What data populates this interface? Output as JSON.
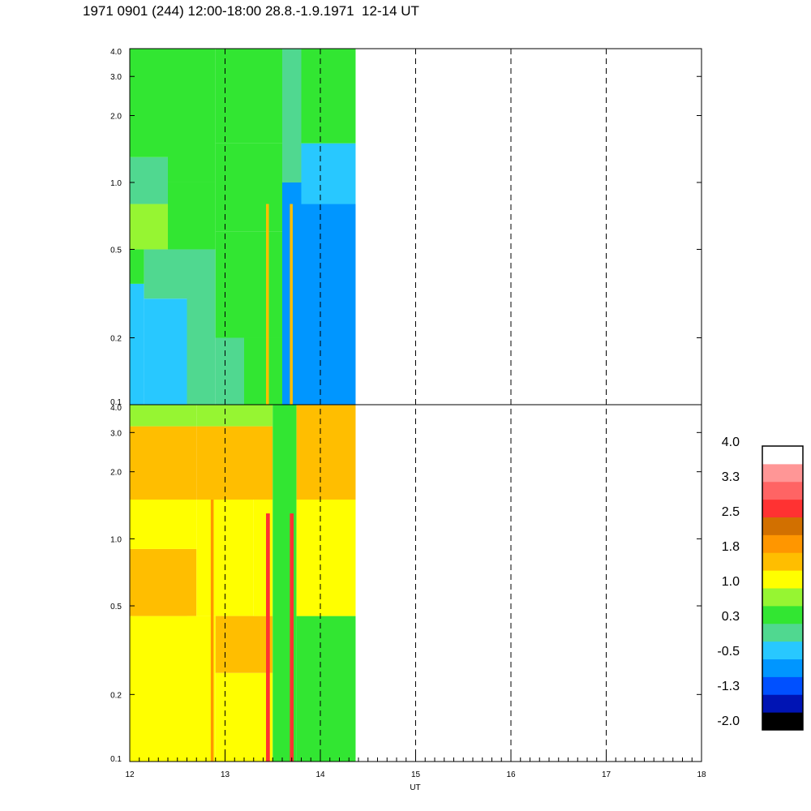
{
  "title": "1971 0901 (244) 12:00-18:00 28.8.-1.9.1971  12-14 UT",
  "chart_data": {
    "type": "heatmap",
    "xlabel": "UT",
    "x_range": [
      12,
      18
    ],
    "x_ticks": [
      "12",
      "13",
      "14",
      "15",
      "16",
      "17",
      "18"
    ],
    "x_dashed_lines": [
      13,
      14,
      15,
      16,
      17
    ],
    "data_x_range": [
      12,
      14.37
    ],
    "y_scale": "log",
    "panels": [
      {
        "name": "upper",
        "ylim": [
          0.1,
          4.0
        ],
        "y_ticks": [
          {
            "v": 0.1,
            "label": "0.1"
          },
          {
            "v": 0.2,
            "label": "0.2"
          },
          {
            "v": 0.5,
            "label": "0.5"
          },
          {
            "v": 1.0,
            "label": "1.0"
          },
          {
            "v": 2.0,
            "label": "2.0"
          },
          {
            "v": 3.0,
            "label": "3.0"
          },
          {
            "v": 4.0,
            "label": "4.0"
          }
        ],
        "cells": [
          {
            "x0": 12.0,
            "x1": 12.15,
            "y0": 0.1,
            "y1": 0.35,
            "level": -0.3
          },
          {
            "x0": 12.0,
            "x1": 12.15,
            "y0": 0.35,
            "y1": 0.5,
            "level": 0.3
          },
          {
            "x0": 12.0,
            "x1": 12.4,
            "y0": 0.5,
            "y1": 0.8,
            "level": 0.7
          },
          {
            "x0": 12.0,
            "x1": 12.4,
            "y0": 0.8,
            "y1": 1.3,
            "level": 0.1
          },
          {
            "x0": 12.0,
            "x1": 12.4,
            "y0": 1.3,
            "y1": 4.0,
            "level": 0.4
          },
          {
            "x0": 12.15,
            "x1": 12.6,
            "y0": 0.1,
            "y1": 0.3,
            "level": -0.3
          },
          {
            "x0": 12.15,
            "x1": 12.6,
            "y0": 0.3,
            "y1": 0.5,
            "level": 0.2
          },
          {
            "x0": 12.4,
            "x1": 12.9,
            "y0": 0.5,
            "y1": 1.0,
            "level": 0.5
          },
          {
            "x0": 12.4,
            "x1": 12.9,
            "y0": 1.0,
            "y1": 4.0,
            "level": 0.3
          },
          {
            "x0": 12.6,
            "x1": 12.9,
            "y0": 0.1,
            "y1": 0.5,
            "level": 0.0
          },
          {
            "x0": 12.9,
            "x1": 13.2,
            "y0": 0.1,
            "y1": 0.2,
            "level": 0.1
          },
          {
            "x0": 12.9,
            "x1": 13.6,
            "y0": 0.2,
            "y1": 0.6,
            "level": 0.5
          },
          {
            "x0": 12.9,
            "x1": 13.6,
            "y0": 0.6,
            "y1": 1.5,
            "level": 0.3
          },
          {
            "x0": 12.9,
            "x1": 13.6,
            "y0": 1.5,
            "y1": 4.0,
            "level": 0.4
          },
          {
            "x0": 13.2,
            "x1": 13.6,
            "y0": 0.1,
            "y1": 0.2,
            "level": 0.3
          },
          {
            "x0": 13.6,
            "x1": 13.8,
            "y0": 0.1,
            "y1": 1.0,
            "level": -0.6
          },
          {
            "x0": 13.6,
            "x1": 13.8,
            "y0": 1.0,
            "y1": 4.0,
            "level": 0.0
          },
          {
            "x0": 13.8,
            "x1": 14.37,
            "y0": 0.1,
            "y1": 0.8,
            "level": -0.7
          },
          {
            "x0": 13.8,
            "x1": 14.37,
            "y0": 0.8,
            "y1": 1.5,
            "level": -0.3
          },
          {
            "x0": 13.8,
            "x1": 14.37,
            "y0": 1.5,
            "y1": 4.0,
            "level": 0.3
          },
          {
            "x0": 13.43,
            "x1": 13.46,
            "y0": 0.1,
            "y1": 0.8,
            "level": 1.7
          },
          {
            "x0": 13.68,
            "x1": 13.71,
            "y0": 0.1,
            "y1": 0.8,
            "level": 1.4
          }
        ]
      },
      {
        "name": "lower",
        "ylim": [
          0.1,
          4.0
        ],
        "y_ticks": [
          {
            "v": 0.1,
            "label": "0.1"
          },
          {
            "v": 0.2,
            "label": "0.2"
          },
          {
            "v": 0.5,
            "label": "0.5"
          },
          {
            "v": 1.0,
            "label": "1.0"
          },
          {
            "v": 2.0,
            "label": "2.0"
          },
          {
            "v": 3.0,
            "label": "3.0"
          },
          {
            "v": 4.0,
            "label": "4.0"
          }
        ],
        "cells": [
          {
            "x0": 12.0,
            "x1": 12.6,
            "y0": 0.1,
            "y1": 0.45,
            "level": 1.0
          },
          {
            "x0": 12.0,
            "x1": 12.7,
            "y0": 0.45,
            "y1": 0.9,
            "level": 1.6
          },
          {
            "x0": 12.0,
            "x1": 12.7,
            "y0": 0.9,
            "y1": 1.5,
            "level": 1.2
          },
          {
            "x0": 12.0,
            "x1": 12.7,
            "y0": 1.5,
            "y1": 3.2,
            "level": 1.5
          },
          {
            "x0": 12.0,
            "x1": 12.7,
            "y0": 3.2,
            "y1": 4.0,
            "level": 0.8
          },
          {
            "x0": 12.6,
            "x1": 12.9,
            "y0": 0.1,
            "y1": 0.45,
            "level": 1.2
          },
          {
            "x0": 12.7,
            "x1": 13.3,
            "y0": 0.45,
            "y1": 1.5,
            "level": 1.1
          },
          {
            "x0": 12.7,
            "x1": 13.5,
            "y0": 1.5,
            "y1": 3.2,
            "level": 1.6
          },
          {
            "x0": 12.7,
            "x1": 13.5,
            "y0": 3.2,
            "y1": 4.0,
            "level": 0.9
          },
          {
            "x0": 12.9,
            "x1": 13.5,
            "y0": 0.1,
            "y1": 0.25,
            "level": 1.1
          },
          {
            "x0": 12.9,
            "x1": 13.5,
            "y0": 0.25,
            "y1": 0.45,
            "level": 1.5
          },
          {
            "x0": 13.3,
            "x1": 13.5,
            "y0": 0.45,
            "y1": 1.5,
            "level": 1.2
          },
          {
            "x0": 13.5,
            "x1": 13.75,
            "y0": 0.1,
            "y1": 4.0,
            "level": 0.4
          },
          {
            "x0": 13.75,
            "x1": 14.37,
            "y0": 0.1,
            "y1": 0.45,
            "level": 0.5
          },
          {
            "x0": 13.75,
            "x1": 14.37,
            "y0": 0.45,
            "y1": 1.5,
            "level": 1.0
          },
          {
            "x0": 13.75,
            "x1": 14.37,
            "y0": 1.5,
            "y1": 4.0,
            "level": 1.4
          },
          {
            "x0": 12.85,
            "x1": 12.88,
            "y0": 0.1,
            "y1": 1.5,
            "level": 2.0
          },
          {
            "x0": 13.43,
            "x1": 13.47,
            "y0": 0.1,
            "y1": 1.3,
            "level": 2.6
          },
          {
            "x0": 13.68,
            "x1": 13.72,
            "y0": 0.1,
            "y1": 1.3,
            "level": 2.6
          }
        ]
      }
    ],
    "colorbar": {
      "range": [
        -2.0,
        4.0
      ],
      "labels": [
        "4.0",
        "3.3",
        "2.5",
        "1.8",
        "1.0",
        "0.3",
        "-0.5",
        "-1.3",
        "-2.0"
      ],
      "colors": [
        "#000000",
        "#0014b4",
        "#0050ff",
        "#0096ff",
        "#28c8ff",
        "#50d890",
        "#32e632",
        "#96f532",
        "#ffff00",
        "#ffbe00",
        "#ff9600",
        "#d27000",
        "#ff3232",
        "#ff6464",
        "#ff9696",
        "#ffffff"
      ]
    }
  }
}
